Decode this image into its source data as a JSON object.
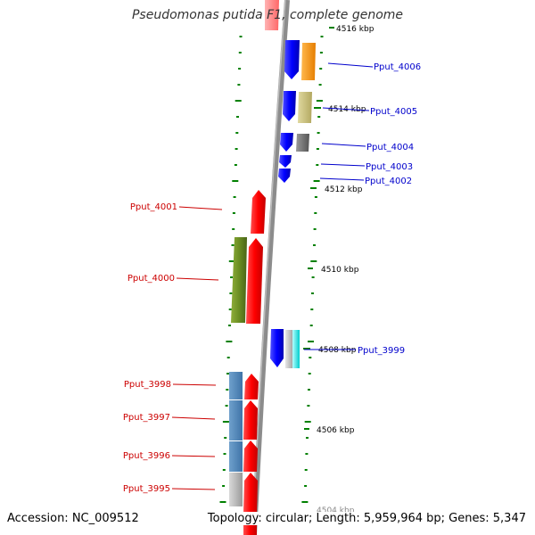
{
  "title": "Pseudomonas putida F1, complete genome",
  "footer": {
    "accession": "Accession: NC_009512",
    "summary": "Topology: circular; Length: 5,959,964 bp; Genes: 5,347"
  },
  "colors": {
    "forward_label": "#0000cc",
    "reverse_label": "#cc0000",
    "tick": "#008000",
    "backbone": "#8c8c8c"
  },
  "scale_labels": [
    "4516 kbp",
    "4514 kbp",
    "4512 kbp",
    "4510 kbp",
    "4508 kbp",
    "4506 kbp",
    "4504 kbp"
  ],
  "forward_labels": [
    "Pput_4006",
    "Pput_4005",
    "Pput_4004",
    "Pput_4003",
    "Pput_4002",
    "Pput_3999"
  ],
  "reverse_labels": [
    "Pput_4001",
    "Pput_4000",
    "Pput_3998",
    "Pput_3997",
    "Pput_3996",
    "Pput_3995"
  ]
}
